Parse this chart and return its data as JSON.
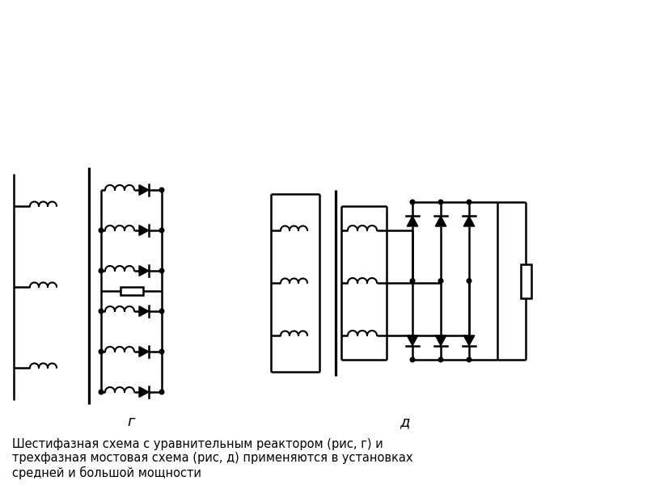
{
  "bg_color": "#ffffff",
  "line_color": "#000000",
  "line_width": 1.8,
  "fig_width": 8.0,
  "fig_height": 6.0,
  "label_g": "г",
  "label_d": "д",
  "caption": "Шестифазная схема с уравнительным реактором (рис, г) и\nтрехфазная мостовая схема (рис, д) применяются в установках\nсредней и большой мощности",
  "caption_fontsize": 10.5,
  "label_fontsize": 13,
  "coil_r": 0.055,
  "coil_n": 4
}
